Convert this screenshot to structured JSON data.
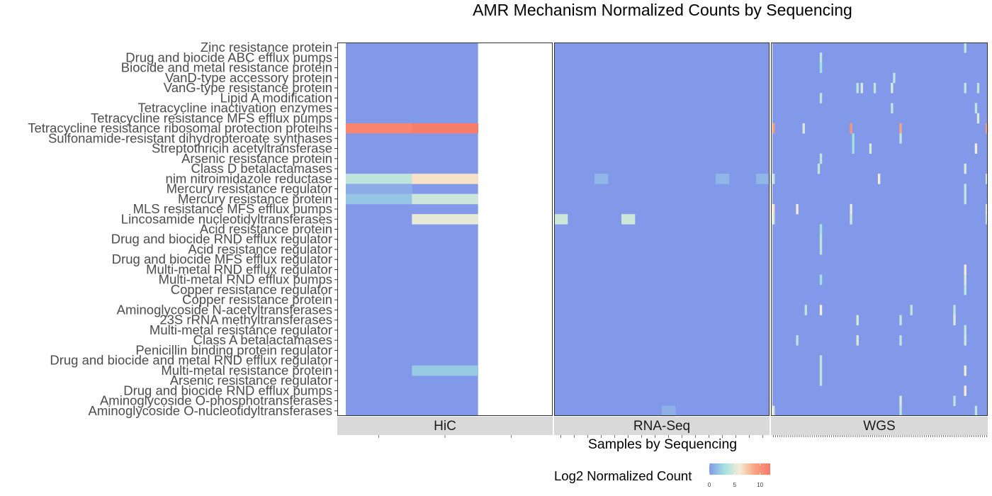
{
  "chart_data": {
    "type": "heatmap",
    "title": "AMR Mechanism Normalized Counts by Sequencing",
    "xlabel": "Samples by Sequencing",
    "legend": {
      "title": "Log2 Normalized Count",
      "ticks": [
        0,
        5,
        10
      ],
      "range": [
        0,
        12
      ],
      "colors": [
        "#8299ea",
        "#a3e1e0",
        "#f5ecd4",
        "#f8a380",
        "#f77a6a"
      ],
      "placement": "bottom"
    },
    "rows": [
      "Zinc resistance protein",
      "Drug and biocide ABC efflux pumps",
      "Biocide and metal resistance protein",
      "VanD-type accessory protein",
      "VanG-type resistance protein",
      "Lipid A modification",
      "Tetracycline inactivation enzymes",
      "Tetracycline resistance MFS efflux pumps",
      "Tetracycline resistance ribosomal protection proteins",
      "Sulfonamide-resistant dihydropteroate synthases",
      "Streptothricin acetyltransferase",
      "Arsenic resistance protein",
      "Class D betalactamases",
      "nim nitroimidazole reductase",
      "Mercury resistance regulator",
      "Mercury resistance protein",
      "MLS resistance MFS efflux pumps",
      "Lincosamide nucleotidyltransferases",
      "Acid resistance protein",
      "Drug and biocide RND efflux regulator",
      "Acid resistance regulator",
      "Drug and biocide MFS efflux regulator",
      "Multi-metal RND efflux regulator",
      "Multi-metal RND efflux pumps",
      "Copper resistance regulator",
      "Copper resistance protein",
      "Aminoglycoside N-acetyltransferases",
      "23S rRNA methyltransferases",
      "Multi-metal resistance regulator",
      "Class A betalactamases",
      "Penicillin binding protein regulator",
      "Drug and biocide and metal RND efflux regulator",
      "Multi-metal resistance protein",
      "Arsenic resistance regulator",
      "Drug and biocide RND efflux pumps",
      "Aminoglycoside O-phosphotransferases",
      "Aminoglycoside O-nucleotidyltransferases"
    ],
    "panels": [
      {
        "name": "HiC",
        "n_samples": 3,
        "cells": [
          {
            "row": "Tetracycline resistance ribosomal protection proteins",
            "sample": 1,
            "value": 11.2
          },
          {
            "row": "Tetracycline resistance ribosomal protection proteins",
            "sample": 2,
            "value": 11.8
          },
          {
            "row": "nim nitroimidazole reductase",
            "sample": 1,
            "value": 4
          },
          {
            "row": "nim nitroimidazole reductase",
            "sample": 2,
            "value": 6.5
          },
          {
            "row": "Mercury resistance regulator",
            "sample": 1,
            "value": 0.8
          },
          {
            "row": "Mercury resistance protein",
            "sample": 1,
            "value": 1.8
          },
          {
            "row": "Mercury resistance protein",
            "sample": 2,
            "value": 4.5
          },
          {
            "row": "Lincosamide nucleotidyltransferases",
            "sample": 2,
            "value": 5.5
          },
          {
            "row": "Multi-metal resistance protein",
            "sample": 2,
            "value": 2
          }
        ],
        "missing_samples": [
          3
        ]
      },
      {
        "name": "RNA-Seq",
        "n_samples": 16,
        "cells": [
          {
            "row": "nim nitroimidazole reductase",
            "sample": 4,
            "value": 1.2
          },
          {
            "row": "nim nitroimidazole reductase",
            "sample": 13,
            "value": 1.2
          },
          {
            "row": "nim nitroimidazole reductase",
            "sample": 16,
            "value": 1.2
          },
          {
            "row": "Lincosamide nucleotidyltransferases",
            "sample": 1,
            "value": 4.5
          },
          {
            "row": "Lincosamide nucleotidyltransferases",
            "sample": 6,
            "value": 4.5
          },
          {
            "row": "Aminoglycoside O-nucleotidyltransferases",
            "sample": 9,
            "value": 1
          }
        ]
      },
      {
        "name": "WGS",
        "n_samples": 100,
        "cells": [
          {
            "row": "Zinc resistance protein",
            "sample": 90,
            "value": 4
          },
          {
            "row": "Drug and biocide ABC efflux pumps",
            "sample": 23,
            "value": 4
          },
          {
            "row": "Biocide and metal resistance protein",
            "sample": 23,
            "value": 3
          },
          {
            "row": "VanD-type accessory protein",
            "sample": 57,
            "value": 4
          },
          {
            "row": "VanG-type resistance protein",
            "sample": 40,
            "value": 4
          },
          {
            "row": "VanG-type resistance protein",
            "sample": 42,
            "value": 5
          },
          {
            "row": "VanG-type resistance protein",
            "sample": 48,
            "value": 4
          },
          {
            "row": "VanG-type resistance protein",
            "sample": 56,
            "value": 5
          },
          {
            "row": "VanG-type resistance protein",
            "sample": 90,
            "value": 4
          },
          {
            "row": "VanG-type resistance protein",
            "sample": 96,
            "value": 4
          },
          {
            "row": "Lipid A modification",
            "sample": 23,
            "value": 4
          },
          {
            "row": "Tetracycline inactivation enzymes",
            "sample": 56,
            "value": 4
          },
          {
            "row": "Tetracycline inactivation enzymes",
            "sample": 95,
            "value": 4
          },
          {
            "row": "Tetracycline resistance MFS efflux pumps",
            "sample": 96,
            "value": 5
          },
          {
            "row": "Tetracycline resistance ribosomal protection proteins",
            "sample": 1,
            "value": 9.5
          },
          {
            "row": "Tetracycline resistance ribosomal protection proteins",
            "sample": 15,
            "value": 5
          },
          {
            "row": "Tetracycline resistance ribosomal protection proteins",
            "sample": 37,
            "value": 10
          },
          {
            "row": "Tetracycline resistance ribosomal protection proteins",
            "sample": 60,
            "value": 9
          },
          {
            "row": "Tetracycline resistance ribosomal protection proteins",
            "sample": 100,
            "value": 9.5
          },
          {
            "row": "Sulfonamide-resistant dihydropteroate synthases",
            "sample": 38,
            "value": 3
          },
          {
            "row": "Sulfonamide-resistant dihydropteroate synthases",
            "sample": 60,
            "value": 4
          },
          {
            "row": "Streptothricin acetyltransferase",
            "sample": 38,
            "value": 3
          },
          {
            "row": "Streptothricin acetyltransferase",
            "sample": 46,
            "value": 5
          },
          {
            "row": "Streptothricin acetyltransferase",
            "sample": 95,
            "value": 6
          },
          {
            "row": "Arsenic resistance protein",
            "sample": 23,
            "value": 4
          },
          {
            "row": "Class D betalactamases",
            "sample": 22,
            "value": 4
          },
          {
            "row": "Class D betalactamases",
            "sample": 90,
            "value": 5
          },
          {
            "row": "nim nitroimidazole reductase",
            "sample": 1,
            "value": 4
          },
          {
            "row": "nim nitroimidazole reductase",
            "sample": 50,
            "value": 6
          },
          {
            "row": "nim nitroimidazole reductase",
            "sample": 100,
            "value": 5
          },
          {
            "row": "Mercury resistance regulator",
            "sample": 90,
            "value": 4
          },
          {
            "row": "Mercury resistance protein",
            "sample": 90,
            "value": 4
          },
          {
            "row": "MLS resistance MFS efflux pumps",
            "sample": 1,
            "value": 6.5
          },
          {
            "row": "MLS resistance MFS efflux pumps",
            "sample": 12,
            "value": 6
          },
          {
            "row": "MLS resistance MFS efflux pumps",
            "sample": 37,
            "value": 5.5
          },
          {
            "row": "MLS resistance MFS efflux pumps",
            "sample": 100,
            "value": 5.5
          },
          {
            "row": "Lincosamide nucleotidyltransferases",
            "sample": 1,
            "value": 5
          },
          {
            "row": "Lincosamide nucleotidyltransferases",
            "sample": 37,
            "value": 4.5
          },
          {
            "row": "Lincosamide nucleotidyltransferases",
            "sample": 100,
            "value": 4.5
          },
          {
            "row": "Acid resistance protein",
            "sample": 23,
            "value": 3
          },
          {
            "row": "Drug and biocide RND efflux regulator",
            "sample": 23,
            "value": 4
          },
          {
            "row": "Acid resistance regulator",
            "sample": 23,
            "value": 4
          },
          {
            "row": "Multi-metal RND efflux regulator",
            "sample": 90,
            "value": 6
          },
          {
            "row": "Multi-metal RND efflux pumps",
            "sample": 23,
            "value": 3
          },
          {
            "row": "Multi-metal RND efflux pumps",
            "sample": 90,
            "value": 5
          },
          {
            "row": "Copper resistance regulator",
            "sample": 90,
            "value": 4
          },
          {
            "row": "Aminoglycoside N-acetyltransferases",
            "sample": 16,
            "value": 4
          },
          {
            "row": "Aminoglycoside N-acetyltransferases",
            "sample": 23,
            "value": 6
          },
          {
            "row": "Aminoglycoside N-acetyltransferases",
            "sample": 65,
            "value": 4
          },
          {
            "row": "Aminoglycoside N-acetyltransferases",
            "sample": 85,
            "value": 4
          },
          {
            "row": "23S rRNA methyltransferases",
            "sample": 40,
            "value": 5
          },
          {
            "row": "23S rRNA methyltransferases",
            "sample": 60,
            "value": 4
          },
          {
            "row": "23S rRNA methyltransferases",
            "sample": 85,
            "value": 5
          },
          {
            "row": "Multi-metal resistance regulator",
            "sample": 90,
            "value": 4
          },
          {
            "row": "Class A betalactamases",
            "sample": 12,
            "value": 4
          },
          {
            "row": "Class A betalactamases",
            "sample": 40,
            "value": 5
          },
          {
            "row": "Class A betalactamases",
            "sample": 60,
            "value": 4
          },
          {
            "row": "Class A betalactamases",
            "sample": 90,
            "value": 4.5
          },
          {
            "row": "Drug and biocide and metal RND efflux regulator",
            "sample": 23,
            "value": 4
          },
          {
            "row": "Multi-metal resistance protein",
            "sample": 23,
            "value": 4
          },
          {
            "row": "Multi-metal resistance protein",
            "sample": 90,
            "value": 6
          },
          {
            "row": "Arsenic resistance regulator",
            "sample": 23,
            "value": 4
          },
          {
            "row": "Drug and biocide RND efflux pumps",
            "sample": 90,
            "value": 6
          },
          {
            "row": "Aminoglycoside O-phosphotransferases",
            "sample": 60,
            "value": 5
          },
          {
            "row": "Aminoglycoside O-phosphotransferases",
            "sample": 85,
            "value": 4
          },
          {
            "row": "Aminoglycoside O-nucleotidyltransferases",
            "sample": 1,
            "value": 5
          },
          {
            "row": "Aminoglycoside O-nucleotidyltransferases",
            "sample": 60,
            "value": 4
          },
          {
            "row": "Aminoglycoside O-nucleotidyltransferases",
            "sample": 95,
            "value": 4
          }
        ]
      }
    ]
  }
}
